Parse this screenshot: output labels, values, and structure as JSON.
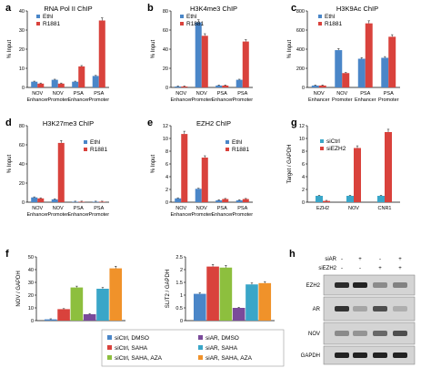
{
  "colors": {
    "blue": "#4a86c8",
    "red": "#d9423c",
    "green": "#8dbf3e",
    "purple": "#7a4a9a",
    "teal": "#3aa6c8",
    "orange": "#f0922a"
  },
  "chart_data": [
    {
      "letter": "a",
      "type": "bar",
      "title": "RNA Pol II ChIP",
      "ylabel": "% Input",
      "categories": [
        "NOV|Enhancer",
        "NOV|Promoter",
        "PSA|Enhancer",
        "PSA|Promoter"
      ],
      "series": [
        {
          "name": "Ethl",
          "color": "blue",
          "values": [
            3,
            4,
            3,
            6
          ]
        },
        {
          "name": "R1881",
          "color": "red",
          "values": [
            2,
            2,
            11,
            35
          ]
        }
      ],
      "ylim": [
        0,
        40
      ],
      "yticks": [
        0,
        10,
        20,
        30,
        40
      ]
    },
    {
      "letter": "b",
      "type": "bar",
      "title": "H3K4me3 ChIP",
      "ylabel": "% Input",
      "categories": [
        "NOV|Enhancer",
        "NOV|Promoter",
        "PSA|Enhancer",
        "PSA|Promoter"
      ],
      "series": [
        {
          "name": "Ethl",
          "color": "blue",
          "values": [
            1,
            68,
            2,
            8
          ]
        },
        {
          "name": "R1881",
          "color": "red",
          "values": [
            1,
            54,
            2,
            48
          ]
        }
      ],
      "ylim": [
        0,
        80
      ],
      "yticks": [
        0,
        20,
        40,
        60,
        80
      ]
    },
    {
      "letter": "c",
      "type": "bar",
      "title": "H3K9Ac ChIP",
      "ylabel": "% Input",
      "categories": [
        "NOV|Enhancer",
        "NOV|Promoter",
        "PSA|Enhancer",
        "PSA|Promoter"
      ],
      "series": [
        {
          "name": "Ethl",
          "color": "blue",
          "values": [
            20,
            390,
            300,
            310
          ]
        },
        {
          "name": "R1881",
          "color": "red",
          "values": [
            20,
            150,
            670,
            530
          ]
        }
      ],
      "ylim": [
        0,
        800
      ],
      "yticks": [
        0,
        200,
        400,
        600,
        800
      ]
    },
    {
      "letter": "d",
      "type": "bar",
      "title": "H3K27me3 ChIP",
      "ylabel": "% Input",
      "categories": [
        "NOV|Enhancer",
        "NOV|Promoter",
        "PSA|Enhancer",
        "PSA|Promoter"
      ],
      "series": [
        {
          "name": "Ethl",
          "color": "blue",
          "values": [
            5,
            3,
            0.5,
            0.5
          ]
        },
        {
          "name": "R1881",
          "color": "red",
          "values": [
            4,
            62,
            0.5,
            0.5
          ]
        }
      ],
      "ylim": [
        0,
        80
      ],
      "yticks": [
        0,
        20,
        40,
        60,
        80
      ]
    },
    {
      "letter": "e",
      "type": "bar",
      "title": "EZH2 ChIP",
      "ylabel": "% Input",
      "categories": [
        "NOV|Enhancer",
        "NOV|Promoter",
        "PSA|Enhancer",
        "PSA|Promoter"
      ],
      "series": [
        {
          "name": "Ethl",
          "color": "blue",
          "values": [
            0.6,
            2.1,
            0.3,
            0.3
          ]
        },
        {
          "name": "R1881",
          "color": "red",
          "values": [
            10.7,
            7,
            0.5,
            0.5
          ]
        }
      ],
      "ylim": [
        0,
        12
      ],
      "yticks": [
        0,
        2,
        4,
        6,
        8,
        10,
        12
      ]
    },
    {
      "letter": "g",
      "type": "bar",
      "title": "",
      "ylabel": "Target / GAPDH",
      "categories": [
        "EZH2",
        "NOV",
        "CNR1"
      ],
      "series": [
        {
          "name": "siCtrl",
          "color": "teal",
          "values": [
            1,
            1,
            1
          ]
        },
        {
          "name": "siEZH2",
          "color": "red",
          "values": [
            0.2,
            8.5,
            11
          ]
        }
      ],
      "ylim": [
        0,
        12
      ],
      "yticks": [
        0,
        2,
        4,
        6,
        8,
        10,
        12
      ]
    },
    {
      "letter": "f",
      "type": "bar",
      "title": "",
      "ylabel": "NOV / GAPDH",
      "categories": [
        ""
      ],
      "series": [
        {
          "name": "siCtrl, DMSO",
          "color": "blue",
          "values": [
            1
          ]
        },
        {
          "name": "siCtrl, SAHA",
          "color": "red",
          "values": [
            9
          ]
        },
        {
          "name": "siCtrl, SAHA, AZA",
          "color": "green",
          "values": [
            26
          ]
        },
        {
          "name": "siAR, DMSO",
          "color": "purple",
          "values": [
            5
          ]
        },
        {
          "name": "siAR, SAHA",
          "color": "teal",
          "values": [
            25
          ]
        },
        {
          "name": "siAR, SAHA, AZA",
          "color": "orange",
          "values": [
            41
          ]
        }
      ],
      "ylim": [
        0,
        50
      ],
      "yticks": [
        0,
        10,
        20,
        30,
        40,
        50
      ]
    },
    {
      "letter": "",
      "type": "bar",
      "title": "",
      "ylabel": "SLIT2 / GAPDH",
      "categories": [
        ""
      ],
      "series": [
        {
          "name": "siCtrl, DMSO",
          "color": "blue",
          "values": [
            1.05
          ]
        },
        {
          "name": "siCtrl, SAHA",
          "color": "red",
          "values": [
            2.12
          ]
        },
        {
          "name": "siCtrl, SAHA, AZA",
          "color": "green",
          "values": [
            2.08
          ]
        },
        {
          "name": "siAR, DMSO",
          "color": "purple",
          "values": [
            0.5
          ]
        },
        {
          "name": "siAR, SAHA",
          "color": "teal",
          "values": [
            1.42
          ]
        },
        {
          "name": "siAR, SAHA, AZA",
          "color": "orange",
          "values": [
            1.47
          ]
        }
      ],
      "ylim": [
        0,
        2.5
      ],
      "yticks": [
        0,
        0.5,
        1,
        1.5,
        2,
        2.5
      ]
    }
  ],
  "western": {
    "letter": "h",
    "conditions": [
      {
        "label": "siAR",
        "values": [
          "-",
          "+",
          "-",
          "+"
        ]
      },
      {
        "label": "siEZH2",
        "values": [
          "-",
          "-",
          "+",
          "+"
        ]
      }
    ],
    "bands": [
      {
        "label": "EZH2",
        "intensity": [
          0.9,
          0.95,
          0.35,
          0.4
        ]
      },
      {
        "label": "AR",
        "intensity": [
          0.85,
          0.2,
          0.7,
          0.15
        ]
      },
      {
        "label": "NOV",
        "intensity": [
          0.35,
          0.3,
          0.55,
          0.7
        ]
      },
      {
        "label": "GAPDH",
        "intensity": [
          0.95,
          0.95,
          0.95,
          0.95
        ]
      }
    ]
  }
}
